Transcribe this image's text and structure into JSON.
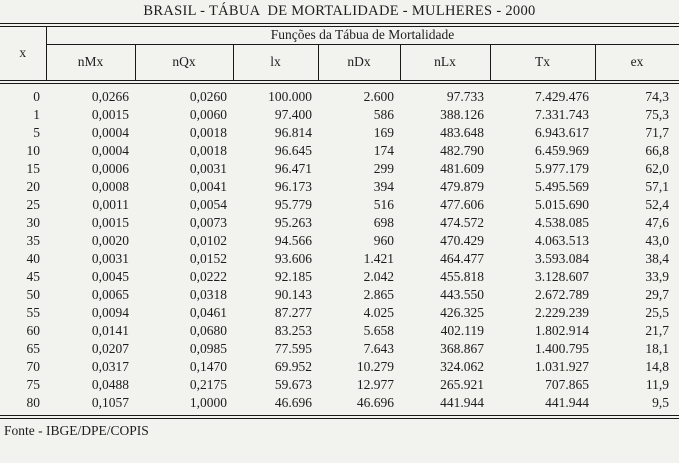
{
  "title": "BRASIL - TÁBUA  DE MORTALIDADE - MULHERES - 2000",
  "table": {
    "group_header": "Funções da Tábua de Mortalidade",
    "age_column_header": "x",
    "columns": [
      "nMx",
      "nQx",
      "lx",
      "nDx",
      "nLx",
      "Tx",
      "ex"
    ],
    "rows": [
      [
        "0",
        "0,0266",
        "0,0260",
        "100.000",
        "2.600",
        "97.733",
        "7.429.476",
        "74,3"
      ],
      [
        "1",
        "0,0015",
        "0,0060",
        "97.400",
        "586",
        "388.126",
        "7.331.743",
        "75,3"
      ],
      [
        "5",
        "0,0004",
        "0,0018",
        "96.814",
        "169",
        "483.648",
        "6.943.617",
        "71,7"
      ],
      [
        "10",
        "0,0004",
        "0,0018",
        "96.645",
        "174",
        "482.790",
        "6.459.969",
        "66,8"
      ],
      [
        "15",
        "0,0006",
        "0,0031",
        "96.471",
        "299",
        "481.609",
        "5.977.179",
        "62,0"
      ],
      [
        "20",
        "0,0008",
        "0,0041",
        "96.173",
        "394",
        "479.879",
        "5.495.569",
        "57,1"
      ],
      [
        "25",
        "0,0011",
        "0,0054",
        "95.779",
        "516",
        "477.606",
        "5.015.690",
        "52,4"
      ],
      [
        "30",
        "0,0015",
        "0,0073",
        "95.263",
        "698",
        "474.572",
        "4.538.085",
        "47,6"
      ],
      [
        "35",
        "0,0020",
        "0,0102",
        "94.566",
        "960",
        "470.429",
        "4.063.513",
        "43,0"
      ],
      [
        "40",
        "0,0031",
        "0,0152",
        "93.606",
        "1.421",
        "464.477",
        "3.593.084",
        "38,4"
      ],
      [
        "45",
        "0,0045",
        "0,0222",
        "92.185",
        "2.042",
        "455.818",
        "3.128.607",
        "33,9"
      ],
      [
        "50",
        "0,0065",
        "0,0318",
        "90.143",
        "2.865",
        "443.550",
        "2.672.789",
        "29,7"
      ],
      [
        "55",
        "0,0094",
        "0,0461",
        "87.277",
        "4.025",
        "426.325",
        "2.229.239",
        "25,5"
      ],
      [
        "60",
        "0,0141",
        "0,0680",
        "83.253",
        "5.658",
        "402.119",
        "1.802.914",
        "21,7"
      ],
      [
        "65",
        "0,0207",
        "0,0985",
        "77.595",
        "7.643",
        "368.867",
        "1.400.795",
        "18,1"
      ],
      [
        "70",
        "0,0317",
        "0,1470",
        "69.952",
        "10.279",
        "324.062",
        "1.031.927",
        "14,8"
      ],
      [
        "75",
        "0,0488",
        "0,2175",
        "59.673",
        "12.977",
        "265.921",
        "707.865",
        "11,9"
      ],
      [
        "80",
        "0,1057",
        "1,0000",
        "46.696",
        "46.696",
        "441.944",
        "441.944",
        "9,5"
      ]
    ]
  },
  "footer": {
    "source": "Fonte - IBGE/DPE/COPIS"
  }
}
